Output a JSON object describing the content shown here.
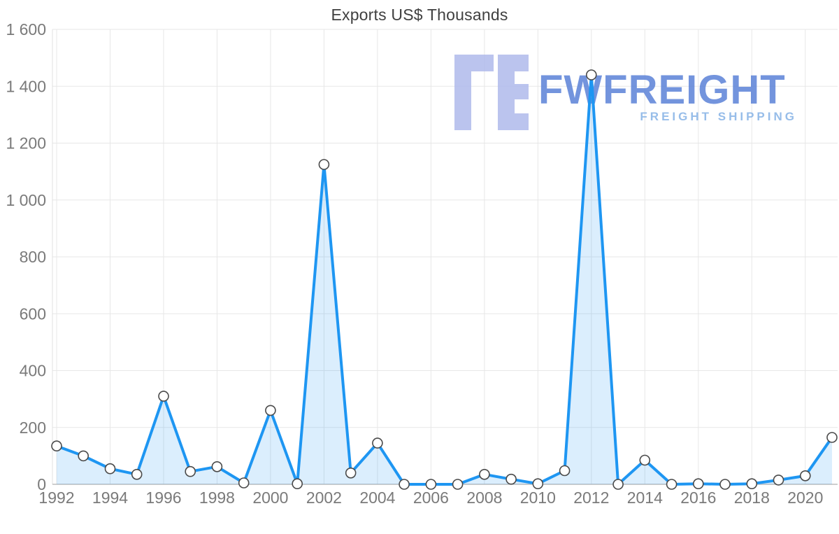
{
  "watermark": {
    "brand": "FWFREIGHT",
    "tagline": "FREIGHT SHIPPING",
    "brand_color": "#5b82d8",
    "tagline_color": "#85b2e6",
    "icon_color": "#b0baec"
  },
  "chart_data": {
    "type": "area",
    "title": "Exports US$ Thousands",
    "x": [
      1992,
      1993,
      1994,
      1995,
      1996,
      1997,
      1998,
      1999,
      2000,
      2001,
      2002,
      2003,
      2004,
      2005,
      2006,
      2007,
      2008,
      2009,
      2010,
      2011,
      2012,
      2013,
      2014,
      2015,
      2016,
      2017,
      2018,
      2019,
      2020,
      2021
    ],
    "values": [
      135,
      100,
      55,
      35,
      310,
      45,
      62,
      5,
      260,
      2,
      1125,
      40,
      145,
      0,
      0,
      0,
      35,
      18,
      2,
      48,
      1440,
      0,
      85,
      0,
      2,
      0,
      2,
      15,
      30,
      165
    ],
    "ylim": [
      0,
      1600
    ],
    "ytick_step": 200,
    "xtick_step": 2,
    "grid": true,
    "legend": "none",
    "line_color": "#1e96f2",
    "area_color": "rgba(33,150,243,0.16)",
    "marker_fill": "#ffffff",
    "marker_stroke": "#4a4a4a",
    "grid_color": "#e7e7e7",
    "axis_color": "#bdbdbd",
    "tick_label_color": "#7a7a7a"
  }
}
